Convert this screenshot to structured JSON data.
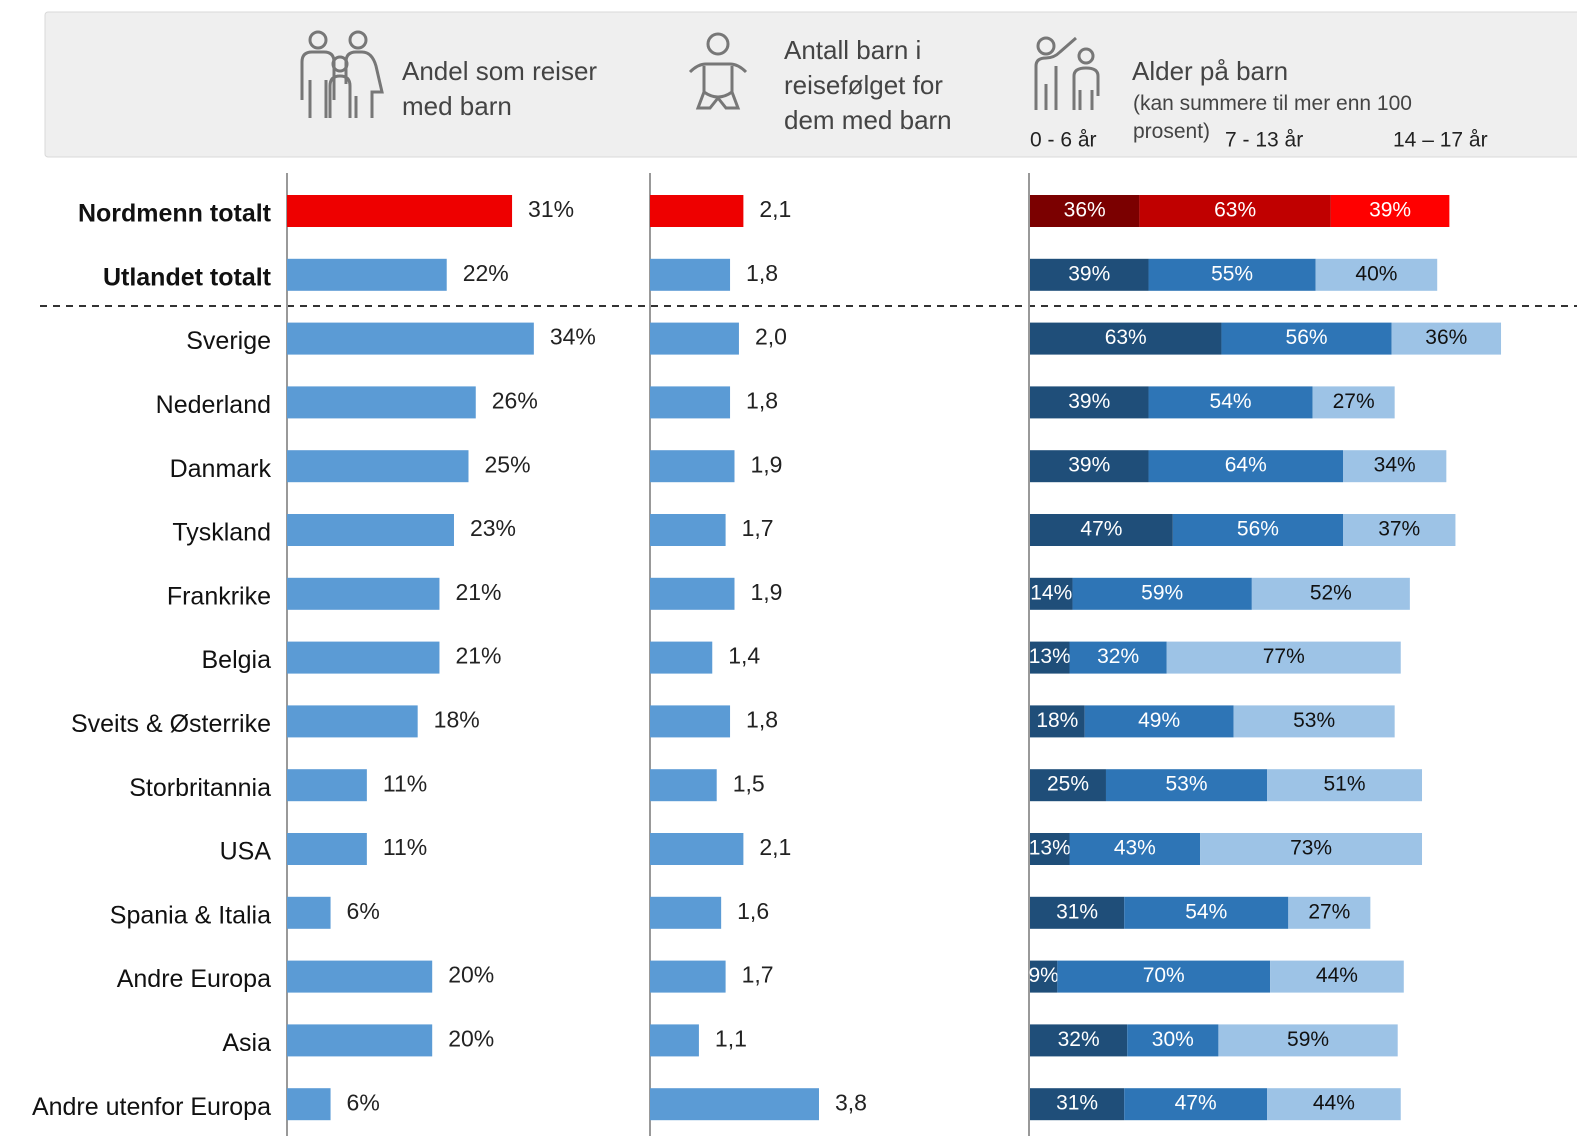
{
  "chart_data": [
    {
      "type": "bar",
      "title": "Andel som reiser med barn",
      "categories": [
        "Nordmenn totalt",
        "Utlandet totalt",
        "Sverige",
        "Nederland",
        "Danmark",
        "Tyskland",
        "Frankrike",
        "Belgia",
        "Sveits & Østerrike",
        "Storbritannia",
        "USA",
        "Spania & Italia",
        "Andre Europa",
        "Asia",
        "Andre utenfor Europa"
      ],
      "bold": [
        0,
        1
      ],
      "values": [
        31,
        22,
        34,
        26,
        25,
        23,
        21,
        21,
        18,
        11,
        11,
        6,
        20,
        20,
        6
      ],
      "value_labels": [
        "31%",
        "22%",
        "34%",
        "26%",
        "25%",
        "23%",
        "21%",
        "21%",
        "18%",
        "11%",
        "11%",
        "6%",
        "20%",
        "20%",
        "6%"
      ],
      "color": "#5b9bd5",
      "highlight": 0,
      "highlight_color": "#ee0000",
      "xlim": [
        0,
        50
      ]
    },
    {
      "type": "bar",
      "title": "Antall barn i reisefølget for dem med barn",
      "values": [
        2.1,
        1.8,
        2.0,
        1.8,
        1.9,
        1.7,
        1.9,
        1.4,
        1.8,
        1.5,
        2.1,
        1.6,
        1.7,
        1.1,
        3.8
      ],
      "value_labels": [
        "2,1",
        "1,8",
        "2,0",
        "1,8",
        "1,9",
        "1,7",
        "1,9",
        "1,4",
        "1,8",
        "1,5",
        "2,1",
        "1,6",
        "1,7",
        "1,1",
        "3,8"
      ],
      "color": "#5b9bd5",
      "highlight": 0,
      "highlight_color": "#ee0000",
      "xlim": [
        0,
        8.5
      ]
    },
    {
      "type": "stacked_bar",
      "title": "Alder på barn",
      "subtitle": "(kan summere til mer enn 100 prosent)",
      "highlight": 0,
      "xlim": [
        0,
        180
      ],
      "series": [
        {
          "name": "0 - 6 år",
          "color": "#1f4e79",
          "highlight_color": "#7b0000",
          "values": [
            36,
            39,
            63,
            39,
            39,
            47,
            14,
            13,
            18,
            25,
            13,
            31,
            9,
            32,
            31
          ],
          "value_labels": [
            "36%",
            "39%",
            "63%",
            "39%",
            "39%",
            "47%",
            "14%",
            "13%",
            "18%",
            "25%",
            "13%",
            "31%",
            "9%",
            "32%",
            "31%"
          ]
        },
        {
          "name": "7 - 13 år",
          "color": "#2e75b6",
          "highlight_color": "#c00000",
          "values": [
            63,
            55,
            56,
            54,
            64,
            56,
            59,
            32,
            49,
            53,
            43,
            54,
            70,
            30,
            47
          ],
          "value_labels": [
            "63%",
            "55%",
            "56%",
            "54%",
            "64%",
            "56%",
            "59%",
            "32%",
            "49%",
            "53%",
            "43%",
            "54%",
            "70%",
            "30%",
            "47%"
          ]
        },
        {
          "name": "14 – 17 år",
          "color": "#9dc3e6",
          "highlight_color": "#ff0000",
          "values": [
            39,
            40,
            36,
            27,
            34,
            37,
            52,
            77,
            53,
            51,
            73,
            27,
            44,
            59,
            44
          ],
          "value_labels": [
            "39%",
            "40%",
            "36%",
            "27%",
            "34%",
            "37%",
            "52%",
            "77%",
            "53%",
            "51%",
            "73%",
            "27%",
            "44%",
            "59%",
            "44%"
          ]
        }
      ]
    }
  ]
}
